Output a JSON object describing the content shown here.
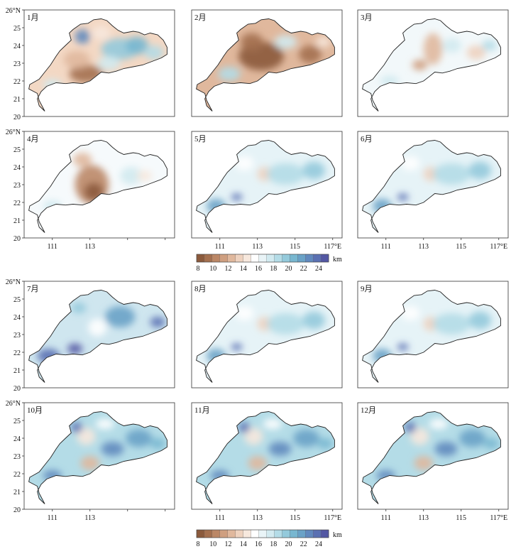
{
  "figure": {
    "panels": [
      {
        "label": "1月",
        "pattern": "mixed_low"
      },
      {
        "label": "2月",
        "pattern": "low"
      },
      {
        "label": "3月",
        "pattern": "mid"
      },
      {
        "label": "4月",
        "pattern": "low_west"
      },
      {
        "label": "5月",
        "pattern": "mid_high"
      },
      {
        "label": "6月",
        "pattern": "mid_high"
      },
      {
        "label": "7月",
        "pattern": "high"
      },
      {
        "label": "8月",
        "pattern": "mid_high"
      },
      {
        "label": "9月",
        "pattern": "mid_high"
      },
      {
        "label": "10月",
        "pattern": "mixed_high"
      },
      {
        "label": "11月",
        "pattern": "mixed_high"
      },
      {
        "label": "12月",
        "pattern": "mixed_high"
      }
    ],
    "lat_ticks": [
      "26°N",
      "25",
      "24",
      "23",
      "22",
      "21",
      "20"
    ],
    "lon_ticks": [
      "111",
      "113",
      "115",
      "117°E"
    ],
    "colorbar": {
      "unit": "km",
      "tick_labels": [
        "8",
        "10",
        "12",
        "14",
        "16",
        "18",
        "20",
        "22",
        "24"
      ],
      "colors": [
        "#8b5a3c",
        "#a4704f",
        "#bb8766",
        "#cf9f80",
        "#e0b89d",
        "#eed2bf",
        "#f7e8dd",
        "#ffffff",
        "#e9f4f7",
        "#d2eaf0",
        "#b4dce7",
        "#94cadb",
        "#78b7d0",
        "#6aa2c7",
        "#6189be",
        "#5a70b2",
        "#5357a3"
      ]
    }
  }
}
